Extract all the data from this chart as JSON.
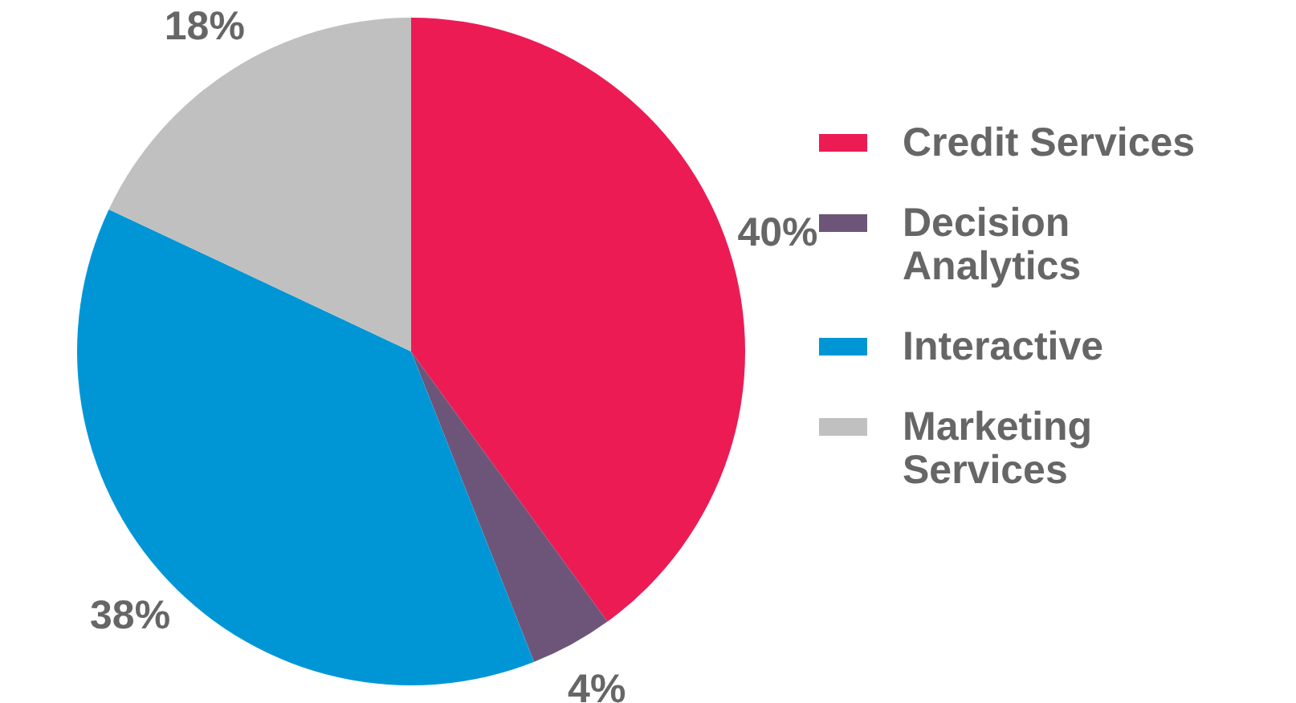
{
  "chart_data": {
    "type": "pie",
    "categories": [
      "Credit Services",
      "Decision Analytics",
      "Interactive",
      "Marketing Services"
    ],
    "values": [
      40,
      4,
      38,
      18
    ],
    "colors": [
      "#ec1b54",
      "#6d557a",
      "#0096d6",
      "#c0c0c0"
    ],
    "value_labels": [
      "40%",
      "4%",
      "38%",
      "18%"
    ],
    "legend": "right"
  }
}
